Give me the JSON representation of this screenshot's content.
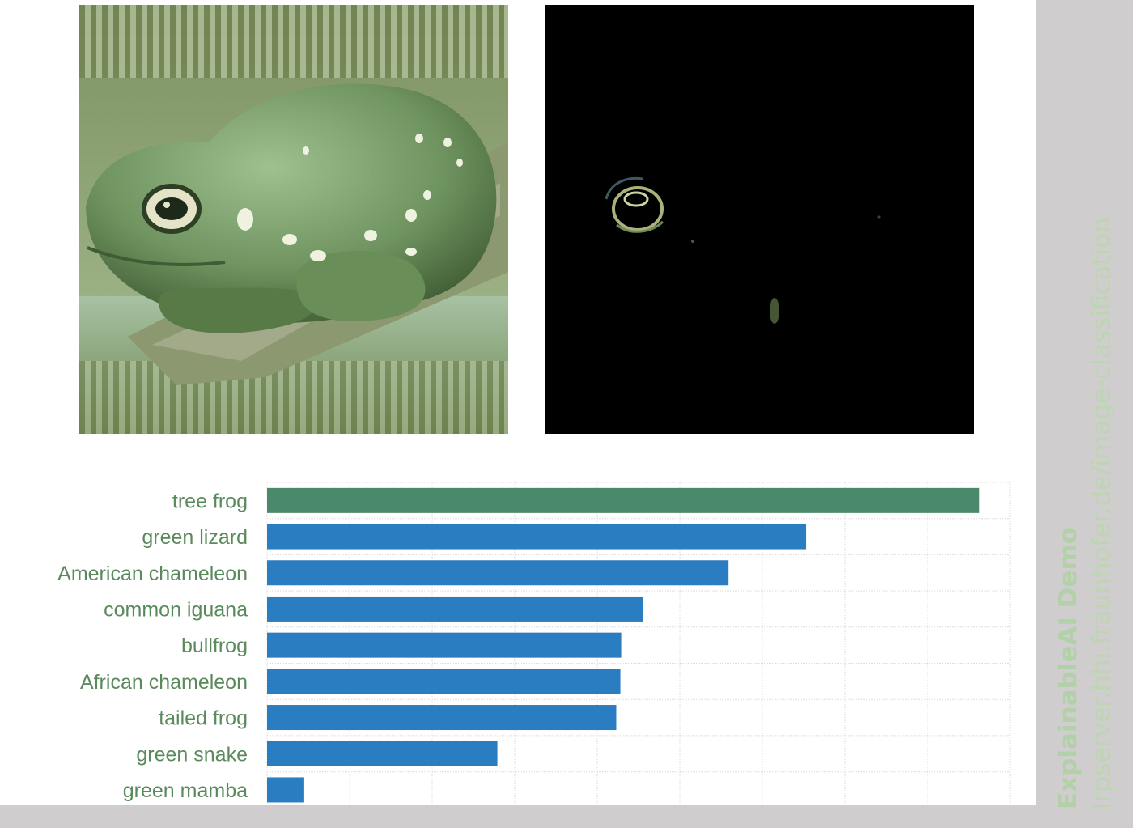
{
  "sidebar": {
    "title": "ExplainableAI Demo",
    "url": "lrpserver.hhi.fraunhofer.de/image-classification"
  },
  "images": {
    "input_name": "frog-photo",
    "heatmap_name": "relevance-heatmap"
  },
  "colors": {
    "top_bar": "#4a8a6a",
    "bar": "#2a7dc0",
    "label": "#5a8a5c",
    "sidebar_bg": "#cfcdce"
  },
  "chart_data": {
    "type": "bar",
    "orientation": "horizontal",
    "title": "",
    "xlabel": "",
    "ylabel": "",
    "categories": [
      "tree frog",
      "green lizard",
      "American chameleon",
      "common iguana",
      "bullfrog",
      "African chameleon",
      "tailed frog",
      "green snake",
      "green mamba"
    ],
    "values": [
      8.63,
      6.53,
      5.59,
      4.55,
      4.29,
      4.28,
      4.23,
      2.79,
      0.45
    ],
    "xlim": [
      0,
      9
    ],
    "grid": true,
    "highlight_index": 0
  }
}
